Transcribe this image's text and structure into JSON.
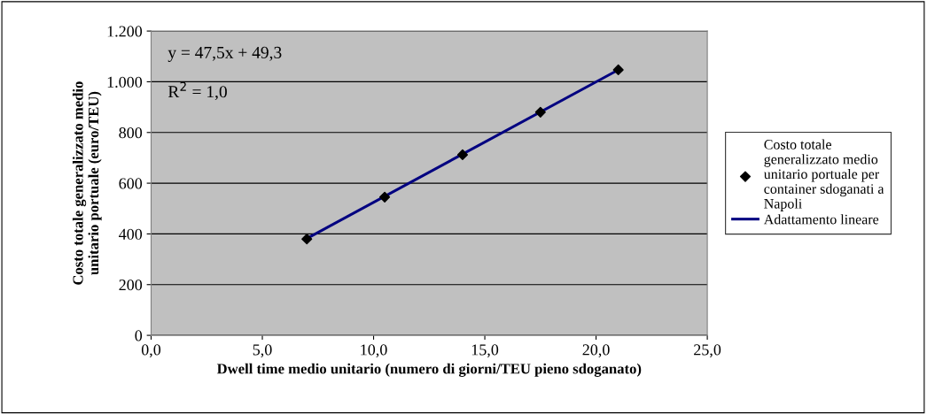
{
  "chart_data": {
    "type": "scatter",
    "xlabel": "Dwell time medio unitario (numero di giorni/TEU pieno sdoganato)",
    "ylabel": "Costo totale generalizzato medio\nunitario portuale (euro/TEU)",
    "x": [
      7,
      10.5,
      14,
      17.5,
      21
    ],
    "series": [
      {
        "name": "Costo totale\ngeneralizzato medio\nunitario portuale per\ncontainer sdoganati a\nNapoli",
        "color": "#000000",
        "values": [
          380,
          545,
          712,
          880,
          1047
        ],
        "marker": "diamond"
      },
      {
        "type": "line",
        "name": "Adattamento lineare",
        "color": "#000080",
        "x": [
          7,
          21
        ],
        "values": [
          382,
          1047
        ],
        "marker": "none",
        "line_style": "solid"
      }
    ],
    "xlim": [
      0,
      25
    ],
    "xticks": [
      {
        "value": 0,
        "label": "0,0"
      },
      {
        "value": 5,
        "label": "5,0"
      },
      {
        "value": 10,
        "label": "10,0"
      },
      {
        "value": 15,
        "label": "15,0"
      },
      {
        "value": 20,
        "label": "20,0"
      },
      {
        "value": 25,
        "label": "25,0"
      }
    ],
    "ylim": [
      0,
      1200
    ],
    "yticks": [
      0,
      200,
      400,
      600,
      800,
      {
        "value": 1000,
        "label": "1.000"
      },
      {
        "value": 1200,
        "label": "1.200"
      }
    ],
    "annotations": [
      "y = 47,5x + 49,3",
      "R$^{2}$ = 1,0"
    ],
    "grid": "y",
    "legend": "right"
  }
}
